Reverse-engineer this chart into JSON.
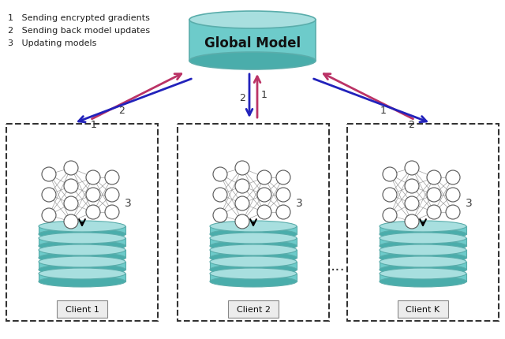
{
  "title": "Global Model",
  "legend_items": [
    "Sending encrypted gradients",
    "Sending back model updates",
    "Updating models"
  ],
  "clients": [
    "Client 1",
    "Client 2",
    "Client K"
  ],
  "teal_body": "#6DCBCA",
  "teal_top": "#A8DFDF",
  "teal_bot": "#4AADAB",
  "teal_edge": "#5AADAB",
  "arrow_blue": "#2222BB",
  "arrow_red": "#BB3366",
  "bg_color": "#FFFFFF",
  "node_color": "#FFFFFF",
  "node_edge": "#555555",
  "font_size_title": 12,
  "font_size_label": 8,
  "font_size_legend": 8,
  "font_size_number": 9
}
